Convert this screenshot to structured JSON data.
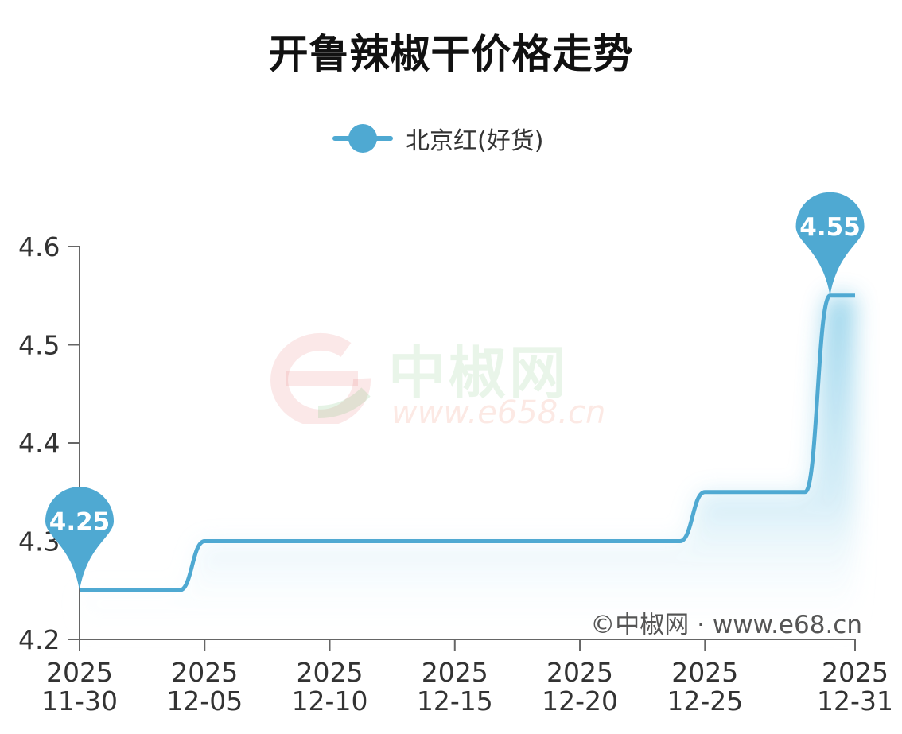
{
  "colors": {
    "series": "#4fa9d2",
    "axis": "#666666",
    "text": "#333333"
  },
  "watermark": {
    "brand": "中椒网",
    "url": "www.e658.cn"
  },
  "credit": "©中椒网 · www.e68.cn",
  "chart_data": {
    "type": "line",
    "title": "开鲁辣椒干价格走势",
    "xlabel": "",
    "ylabel": "",
    "ylim": [
      4.2,
      4.6
    ],
    "yticks": [
      "4.2",
      "4.3",
      "4.4",
      "4.5",
      "4.6"
    ],
    "xticks": [
      {
        "date": "2025-11-30",
        "year": "2025",
        "md": "11-30"
      },
      {
        "date": "2025-12-05",
        "year": "2025",
        "md": "12-05"
      },
      {
        "date": "2025-12-10",
        "year": "2025",
        "md": "12-10"
      },
      {
        "date": "2025-12-15",
        "year": "2025",
        "md": "12-15"
      },
      {
        "date": "2025-12-20",
        "year": "2025",
        "md": "12-20"
      },
      {
        "date": "2025-12-25",
        "year": "2025",
        "md": "12-25"
      },
      {
        "date": "2025-12-31",
        "year": "2025",
        "md": "12-31"
      }
    ],
    "legend": "top-center",
    "grid": false,
    "series": [
      {
        "name": "北京红(好货)",
        "color": "#4fa9d2",
        "smooth_steps": true,
        "points": [
          {
            "x": "2025-11-30",
            "y": 4.25
          },
          {
            "x": "2025-12-04",
            "y": 4.25
          },
          {
            "x": "2025-12-05",
            "y": 4.3
          },
          {
            "x": "2025-12-24",
            "y": 4.3
          },
          {
            "x": "2025-12-25",
            "y": 4.35
          },
          {
            "x": "2025-12-29",
            "y": 4.35
          },
          {
            "x": "2025-12-30",
            "y": 4.55
          },
          {
            "x": "2025-12-31",
            "y": 4.55
          }
        ],
        "markers": [
          {
            "x": "2025-11-30",
            "y": 4.25,
            "label": "4.25"
          },
          {
            "x": "2025-12-30",
            "y": 4.55,
            "label": "4.55"
          }
        ]
      }
    ]
  }
}
